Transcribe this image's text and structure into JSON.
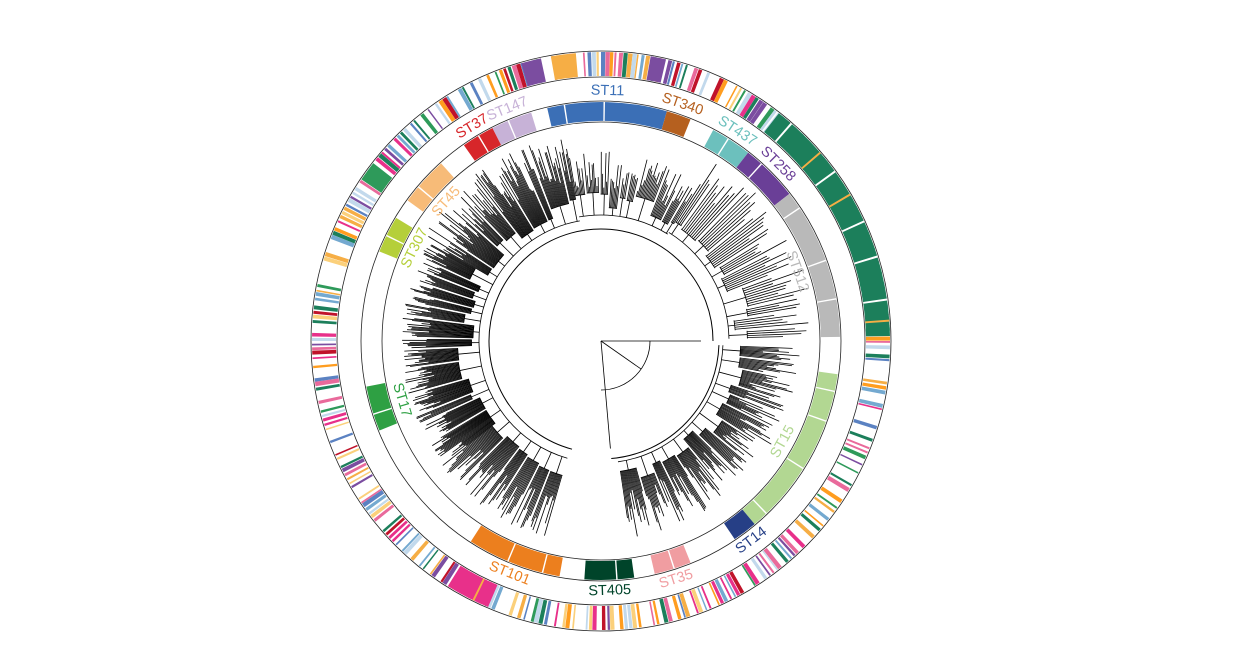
{
  "figure": {
    "type": "circular-phylogenetic-tree",
    "background": "#ffffff",
    "branch_color": "#000000",
    "sequence_types": [
      {
        "name": "ST11",
        "color": "#3b6fb6",
        "start_deg": 347,
        "end_deg": 16
      },
      {
        "name": "ST340",
        "color": "#b5601f",
        "start_deg": 16,
        "end_deg": 22
      },
      {
        "name": "ST437",
        "color": "#6cc0bd",
        "start_deg": 28,
        "end_deg": 38
      },
      {
        "name": "ST258",
        "color": "#6a3f97",
        "start_deg": 38,
        "end_deg": 52
      },
      {
        "name": "ST512",
        "color": "#b9b9b9",
        "start_deg": 52,
        "end_deg": 89
      },
      {
        "name": "ST15",
        "color": "#b2d792",
        "start_deg": 98,
        "end_deg": 140
      },
      {
        "name": "ST14",
        "color": "#263f86",
        "start_deg": 140,
        "end_deg": 146
      },
      {
        "name": "ST35",
        "color": "#f09da1",
        "start_deg": 158,
        "end_deg": 167
      },
      {
        "name": "ST405",
        "color": "#00442a",
        "start_deg": 172,
        "end_deg": 184
      },
      {
        "name": "ST101",
        "color": "#ec7f1e",
        "start_deg": 190,
        "end_deg": 213
      },
      {
        "name": "ST17",
        "color": "#2ea043",
        "start_deg": 248,
        "end_deg": 259
      },
      {
        "name": "ST307",
        "color": "#b5cf3a",
        "start_deg": 292,
        "end_deg": 301
      },
      {
        "name": "ST45",
        "color": "#f7bb78",
        "start_deg": 306,
        "end_deg": 318
      },
      {
        "name": "ST37",
        "color": "#d7262a",
        "start_deg": 325,
        "end_deg": 333
      },
      {
        "name": "ST147",
        "color": "#c7b2d7",
        "start_deg": 333,
        "end_deg": 343
      }
    ],
    "outer_ring_palette": [
      "#e8308a",
      "#f6ae45",
      "#74a9d0",
      "#2e9a5a",
      "#7b4da0",
      "#c2d9ec",
      "#c0132a",
      "#fbd07b",
      "#1c7f5b",
      "#e96a9b",
      "#ff9d1f",
      "#5b82c2"
    ],
    "outer_ring_blocks": [
      {
        "color": "#1c7f5b",
        "start_deg": 38,
        "end_deg": 89
      },
      {
        "color": "#7b4da0",
        "start_deg": 344,
        "end_deg": 348
      },
      {
        "color": "#7b4da0",
        "start_deg": 10,
        "end_deg": 13
      },
      {
        "color": "#f6ae45",
        "start_deg": 350,
        "end_deg": 355
      },
      {
        "color": "#2e9a5a",
        "start_deg": 304,
        "end_deg": 308
      },
      {
        "color": "#e8308a",
        "start_deg": 203,
        "end_deg": 212
      }
    ]
  }
}
